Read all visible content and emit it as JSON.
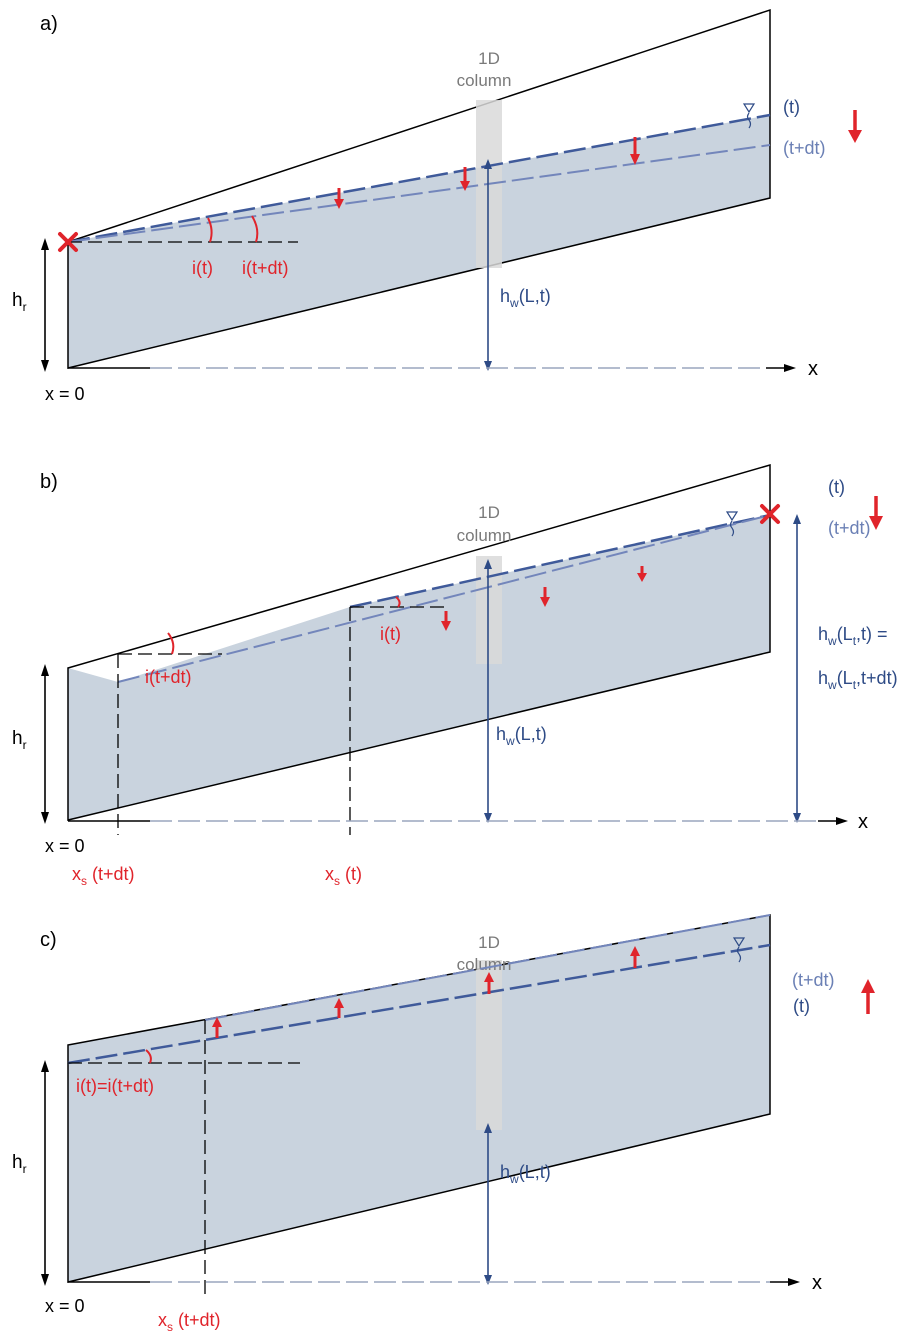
{
  "colors": {
    "water": "#c9d3de",
    "column": "#d9d9d9",
    "line_t": "#3f5a9a",
    "line_tdt": "#7386bb",
    "red": "#e0242b",
    "dark_blue": "#2e4b86"
  },
  "icons": [
    "water-table-symbol",
    "red-x-marker",
    "red-down-arrow",
    "red-up-arrow"
  ],
  "panels": {
    "a": {
      "label": "a)",
      "column_line1": "1D",
      "column_line2": "column",
      "t": "(t)",
      "tdt": "(t+dt)",
      "it": "i(t)",
      "itdt": "i(t+dt)",
      "hr": "h",
      "hr_sub": "r",
      "hw": "h",
      "hw_sub": "w",
      "hw_rest": "(L,t)",
      "x0": "x = 0",
      "x": "x"
    },
    "b": {
      "label": "b)",
      "column_line1": "1D",
      "column_line2": "column",
      "t": "(t)",
      "tdt": "(t+dt)",
      "it": "i(t)",
      "itdt": "i(t+dt)",
      "hr": "h",
      "hr_sub": "r",
      "hw": "h",
      "hw_sub": "w",
      "hw_rest": "(L,t)",
      "hwlt1_pre": "h",
      "hwlt1_sub": "w",
      "hwlt1_mid": "(L",
      "hwlt1_sub2": "t",
      "hwlt1_end": ",t) =",
      "hwlt2_pre": "h",
      "hwlt2_sub": "w",
      "hwlt2_mid": "(L",
      "hwlt2_sub2": "t",
      "hwlt2_end": ",t+dt)",
      "xs_tdt_pre": "x",
      "xs_tdt_sub": "s",
      "xs_tdt_end": " (t+dt)",
      "xs_t_pre": "x",
      "xs_t_sub": "s",
      "xs_t_end": " (t)",
      "x0": "x = 0",
      "x": "x"
    },
    "c": {
      "label": "c)",
      "column_line1": "1D",
      "column_line2": "column",
      "t": "(t)",
      "tdt": "(t+dt)",
      "ieq": "i(t)=i(t+dt)",
      "hr": "h",
      "hr_sub": "r",
      "hw": "h",
      "hw_sub": "w",
      "hw_rest": "(L,t)",
      "xs_tdt_pre": "x",
      "xs_tdt_sub": "s",
      "xs_tdt_end": " (t+dt)",
      "x0": "x = 0",
      "x": "x"
    }
  }
}
